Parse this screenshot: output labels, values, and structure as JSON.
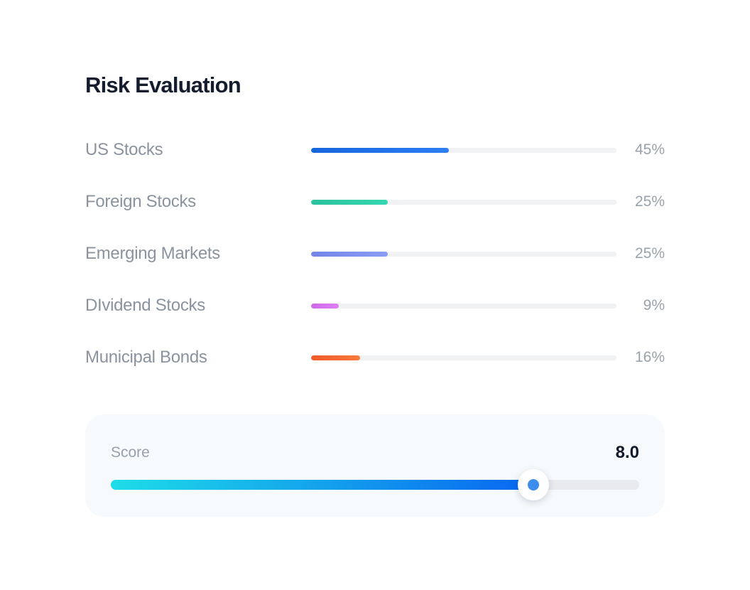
{
  "title": "Risk Evaluation",
  "allocations": [
    {
      "label": "US Stocks",
      "percent_label": "45%",
      "value": 45,
      "color_start": "#1765dc",
      "color_end": "#2d7ff2"
    },
    {
      "label": "Foreign Stocks",
      "percent_label": "25%",
      "value": 25,
      "color_start": "#2cc19e",
      "color_end": "#36d6b2"
    },
    {
      "label": "Emerging Markets",
      "percent_label": "25%",
      "value": 25,
      "color_start": "#7285e8",
      "color_end": "#8b9df2"
    },
    {
      "label": "DIvidend Stocks",
      "percent_label": "9%",
      "value": 9,
      "color_start": "#cd68e6",
      "color_end": "#e07ff7"
    },
    {
      "label": "Municipal Bonds",
      "percent_label": "16%",
      "value": 16,
      "color_start": "#ef5a28",
      "color_end": "#fa7a3c"
    }
  ],
  "track_color": "#f0f2f4",
  "score": {
    "label": "Score",
    "value": "8.0",
    "percent": 80,
    "gradient_start": "#1edde8",
    "gradient_end": "#0866f0",
    "thumb_dot_color": "#3d8ded"
  },
  "chart_data": {
    "type": "bar",
    "title": "Risk Evaluation",
    "categories": [
      "US Stocks",
      "Foreign Stocks",
      "Emerging Markets",
      "DIvidend Stocks",
      "Municipal Bonds"
    ],
    "values": [
      45,
      25,
      25,
      9,
      16
    ],
    "value_unit": "%",
    "score": 8.0,
    "score_max": 10
  }
}
